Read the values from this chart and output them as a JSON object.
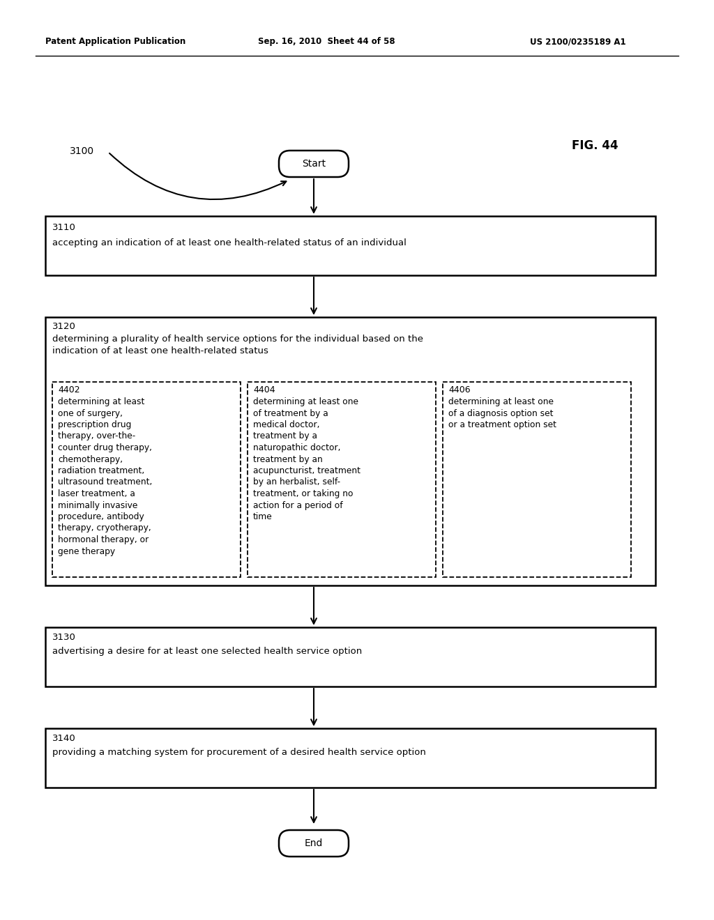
{
  "header_left": "Patent Application Publication",
  "header_mid": "Sep. 16, 2010  Sheet 44 of 58",
  "header_right": "US 2100/0235189 A1",
  "fig_label": "FIG. 44",
  "diagram_label": "3100",
  "start_text": "Start",
  "end_text": "End",
  "box3110_label": "3110",
  "box3110_text": "accepting an indication of at least one health-related status of an individual",
  "box3120_label": "3120",
  "box3120_text": "determining a plurality of health service options for the individual based on the\nindication of at least one health-related status",
  "box3130_label": "3130",
  "box3130_text": "advertising a desire for at least one selected health service option",
  "box3140_label": "3140",
  "box3140_text": "providing a matching system for procurement of a desired health service option",
  "sub4402_label": "4402",
  "sub4402_text": "determining at least\none of surgery,\nprescription drug\ntherapy, over-the-\ncounter drug therapy,\nchemotherapy,\nradiation treatment,\nultrasound treatment,\nlaser treatment, a\nminimally invasive\nprocedure, antibody\ntherapy, cryotherapy,\nhormonal therapy, or\ngene therapy",
  "sub4404_label": "4404",
  "sub4404_text": "determining at least one\nof treatment by a\nmedical doctor,\ntreatment by a\nnaturopathic doctor,\ntreatment by an\nacupuncturist, treatment\nby an herbalist, self-\ntreatment, or taking no\naction for a period of\ntime",
  "sub4406_label": "4406",
  "sub4406_text": "determining at least one\nof a diagnosis option set\nor a treatment option set",
  "bg_color": "#ffffff",
  "box_color": "#000000",
  "text_color": "#000000"
}
